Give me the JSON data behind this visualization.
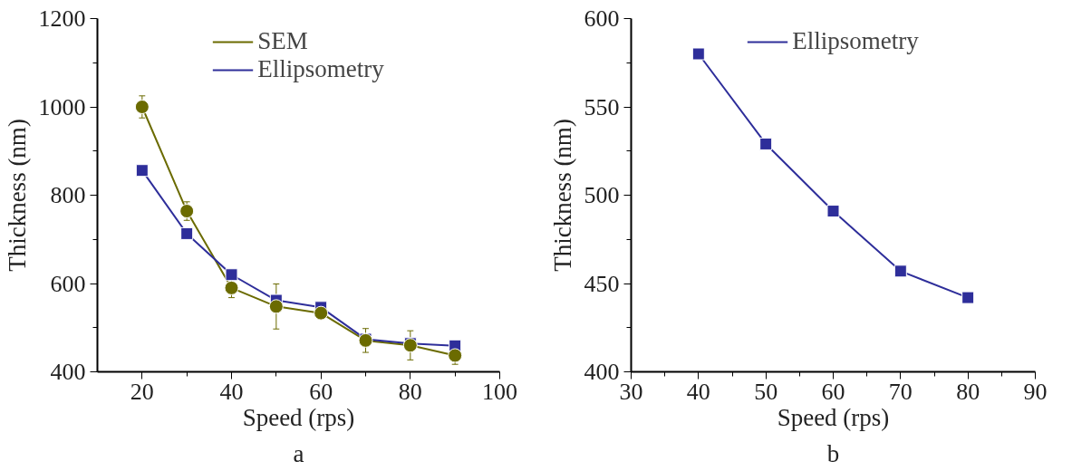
{
  "chart_data": [
    {
      "type": "line",
      "xlabel": "Speed (rps)",
      "ylabel": "Thickness (nm)",
      "annotations": [
        "a"
      ],
      "x": [
        20,
        30,
        40,
        50,
        60,
        70,
        80,
        90
      ],
      "series": [
        {
          "name": "SEM",
          "color": "#6b6b00",
          "marker": "circle",
          "values": [
            1000,
            764,
            590,
            548,
            533,
            471,
            460,
            437
          ],
          "errors": [
            25,
            21,
            22,
            51,
            null,
            27,
            33,
            20
          ]
        },
        {
          "name": "Ellipsometry",
          "color": "#2e2e9a",
          "marker": "square",
          "values": [
            856,
            713,
            620,
            562,
            546,
            474,
            464,
            459
          ]
        }
      ],
      "xlim": [
        10,
        100
      ],
      "xticks": [
        20,
        40,
        60,
        80,
        100
      ],
      "ylim": [
        400,
        1200
      ],
      "yticks": [
        400,
        600,
        800,
        1000,
        1200
      ],
      "grid": false,
      "legend": "top"
    },
    {
      "type": "line",
      "xlabel": "Speed (rps)",
      "ylabel": "Thickness (nm)",
      "annotations": [
        "b"
      ],
      "x": [
        40,
        50,
        60,
        70,
        80
      ],
      "series": [
        {
          "name": "Ellipsometry",
          "color": "#2e2e9a",
          "marker": "square",
          "values": [
            580,
            529,
            491,
            457,
            442
          ]
        }
      ],
      "xlim": [
        30,
        90
      ],
      "xticks": [
        30,
        40,
        50,
        60,
        70,
        80,
        90
      ],
      "ylim": [
        400,
        600
      ],
      "yticks": [
        400,
        450,
        500,
        550,
        600
      ],
      "grid": false,
      "legend": "top"
    }
  ]
}
